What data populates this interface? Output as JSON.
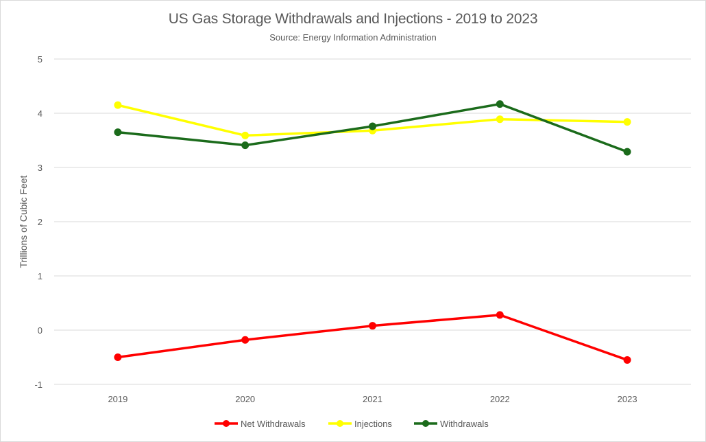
{
  "chart_data": {
    "type": "line",
    "title": "US Gas Storage Withdrawals and Injections - 2019 to 2023",
    "subtitle": "Source:  Energy Information Administration",
    "xlabel": "",
    "ylabel": "Trillions of Cubic Feet",
    "categories": [
      "2019",
      "2020",
      "2021",
      "2022",
      "2023"
    ],
    "ylim": [
      -1,
      5
    ],
    "yticks": [
      5,
      4,
      3,
      2,
      1,
      0,
      -1
    ],
    "grid": true,
    "legend_position": "bottom",
    "series": [
      {
        "name": "Net Withdrawals",
        "color": "#ff0000",
        "values": [
          -0.5,
          -0.18,
          0.08,
          0.28,
          -0.55
        ]
      },
      {
        "name": "Injections",
        "color": "#ffff00",
        "values": [
          4.15,
          3.59,
          3.68,
          3.89,
          3.84
        ]
      },
      {
        "name": "Withdrawals",
        "color": "#1b6b1b",
        "values": [
          3.65,
          3.41,
          3.76,
          4.17,
          3.29
        ]
      }
    ]
  }
}
